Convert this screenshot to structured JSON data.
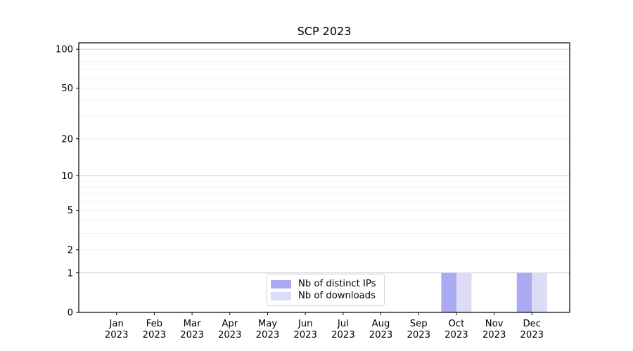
{
  "page": {
    "background": "#ffffff"
  },
  "chart_data": {
    "type": "bar",
    "title": "SCP 2023",
    "categories": [
      "Jan",
      "Feb",
      "Mar",
      "Apr",
      "May",
      "Jun",
      "Jul",
      "Aug",
      "Sep",
      "Oct",
      "Nov",
      "Dec"
    ],
    "category_year": "2023",
    "series": [
      {
        "name": "Nb of distinct IPs",
        "color": "#aaaaf2",
        "values": [
          0,
          0,
          0,
          0,
          0,
          0,
          0,
          0,
          0,
          1,
          0,
          1
        ]
      },
      {
        "name": "Nb of downloads",
        "color": "#dcdcf7",
        "values": [
          0,
          0,
          0,
          0,
          0,
          0,
          0,
          0,
          0,
          1,
          0,
          1
        ]
      }
    ],
    "y_axis": {
      "scale": "log1p",
      "min": 0,
      "max": 112,
      "tick_values": [
        0,
        1,
        2,
        5,
        10,
        20,
        50,
        100
      ],
      "major_grid": [
        1,
        10,
        100
      ],
      "minor_grid": [
        2,
        3,
        4,
        5,
        6,
        7,
        8,
        9,
        20,
        30,
        40,
        50,
        60,
        70,
        80,
        90
      ]
    },
    "legend": {
      "position": "lower center"
    },
    "colors": {
      "spine": "#000000",
      "tick": "#000000",
      "text": "#000000",
      "major_grid": "#cccccc",
      "minor_grid": "#f0f0f0",
      "background": "#ffffff"
    }
  }
}
